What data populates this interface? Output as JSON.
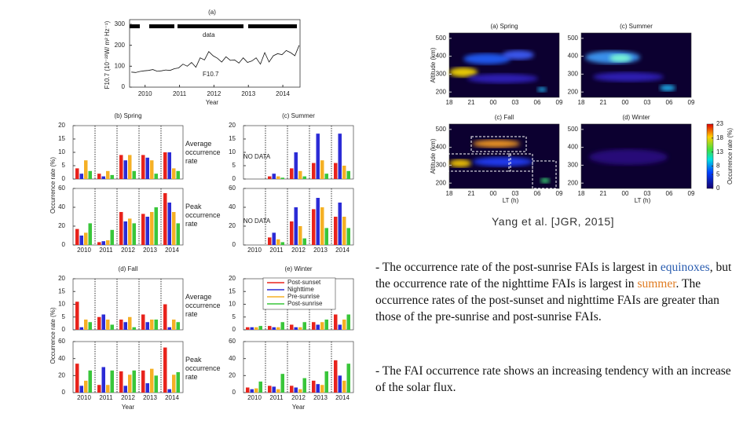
{
  "figure": {
    "panel_a": {
      "title": "(a)",
      "ylabel": "F10.7 (10⁻²²W/ m² Hz⁻¹)",
      "xlabel": "Year",
      "data_label": "data",
      "line_label": "F10.7",
      "xlim": [
        2009.55,
        2014.5
      ],
      "ylim": [
        0,
        300
      ],
      "yticks": [
        0,
        100,
        200,
        300
      ],
      "xticks": [
        2010,
        2011,
        2012,
        2013,
        2014
      ],
      "x": [
        2009.6,
        2009.725,
        2009.85,
        2009.975,
        2010.1,
        2010.225,
        2010.35,
        2010.475,
        2010.6,
        2010.725,
        2010.85,
        2010.975,
        2011.1,
        2011.225,
        2011.35,
        2011.475,
        2011.6,
        2011.725,
        2011.85,
        2011.975,
        2012.1,
        2012.225,
        2012.35,
        2012.475,
        2012.6,
        2012.725,
        2012.85,
        2012.975,
        2013.1,
        2013.225,
        2013.35,
        2013.475,
        2013.6,
        2013.725,
        2013.85,
        2013.975,
        2014.1,
        2014.225,
        2014.35,
        2014.475
      ],
      "values": [
        72,
        70,
        75,
        78,
        80,
        84,
        76,
        78,
        82,
        80,
        88,
        92,
        110,
        100,
        118,
        95,
        140,
        130,
        170,
        150,
        138,
        120,
        145,
        128,
        130,
        115,
        140,
        118,
        125,
        140,
        110,
        165,
        120,
        150,
        160,
        155,
        175,
        165,
        150,
        200
      ]
    },
    "ylabel": "Occurrence rate (%)",
    "xlabel": "Year",
    "categories": [
      "2010",
      "2011",
      "2012",
      "2013",
      "2014"
    ],
    "avg_label": "Average occurrence rate",
    "peak_label": "Peak occurrence rate",
    "avg_ylim": [
      0,
      20
    ],
    "avg_yticks": [
      0,
      5,
      10,
      15,
      20
    ],
    "peak_ylim": [
      0,
      60
    ],
    "peak_yticks": [
      0,
      20,
      40,
      60
    ],
    "series": [
      {
        "name": "Post-sunset",
        "color": "#e8231c"
      },
      {
        "name": "Nighttime",
        "color": "#2b2bd6"
      },
      {
        "name": "Pre-sunrise",
        "color": "#f5b025"
      },
      {
        "name": "Post-sunrise",
        "color": "#39c63a"
      }
    ],
    "panels": [
      {
        "title": "(b) Spring",
        "avg": [
          [
            4,
            2,
            7,
            3
          ],
          [
            2,
            1,
            3,
            1.5
          ],
          [
            9,
            7,
            9,
            3
          ],
          [
            9,
            8,
            7,
            2
          ],
          [
            10,
            10,
            4,
            3
          ]
        ],
        "peak": [
          [
            17,
            10,
            13,
            23
          ],
          [
            3,
            4,
            5,
            16
          ],
          [
            35,
            25,
            28,
            23
          ],
          [
            33,
            30,
            35,
            40
          ],
          [
            55,
            45,
            35,
            23
          ]
        ]
      },
      {
        "title": "(c) Summer",
        "no_data": "NO DATA",
        "avg": [
          [
            null,
            null,
            null,
            null
          ],
          [
            1,
            2,
            1,
            0.5
          ],
          [
            4,
            10,
            3,
            1
          ],
          [
            6,
            17,
            7,
            2
          ],
          [
            6,
            17,
            5,
            3
          ]
        ],
        "peak": [
          [
            null,
            null,
            null,
            null
          ],
          [
            8,
            13,
            6,
            3
          ],
          [
            25,
            40,
            20,
            7
          ],
          [
            38,
            50,
            40,
            18
          ],
          [
            30,
            45,
            30,
            18
          ]
        ]
      },
      {
        "title": "(d) Fall",
        "avg": [
          [
            11,
            1,
            4,
            3
          ],
          [
            5,
            6,
            4,
            2
          ],
          [
            4,
            3,
            5,
            1
          ],
          [
            6,
            3,
            4,
            4
          ],
          [
            10,
            1,
            4,
            3
          ]
        ],
        "peak": [
          [
            34,
            8,
            14,
            26
          ],
          [
            9,
            30,
            9,
            26
          ],
          [
            25,
            8,
            21,
            26
          ],
          [
            26,
            11,
            28,
            20
          ],
          [
            53,
            4,
            21,
            24
          ]
        ]
      },
      {
        "title": "(e) Winter",
        "avg": [
          [
            1,
            1,
            1,
            1.5
          ],
          [
            1.5,
            1,
            1,
            3
          ],
          [
            2,
            1,
            1,
            3
          ],
          [
            3,
            2,
            3,
            4
          ],
          [
            6,
            2,
            4,
            6
          ]
        ],
        "peak": [
          [
            6,
            4,
            5,
            13
          ],
          [
            8,
            7,
            4,
            22
          ],
          [
            8,
            6,
            4,
            17
          ],
          [
            14,
            10,
            9,
            25
          ],
          [
            38,
            20,
            14,
            34
          ]
        ]
      }
    ],
    "rti": {
      "ylabel": "Altitude (km)",
      "xlabel": "LT (h)",
      "ylim": [
        170,
        530
      ],
      "yticks": [
        200,
        300,
        400,
        500
      ],
      "xticks": [
        "18",
        "21",
        "00",
        "03",
        "06",
        "09"
      ],
      "colorbar_label": "Occurrence rate (%)",
      "colorbar_lim": [
        0,
        23
      ],
      "colorbar_ticks": [
        0,
        5,
        8,
        13,
        18,
        23
      ],
      "panels": [
        {
          "title": "(a) Spring"
        },
        {
          "title": "(c) Summer"
        },
        {
          "title": "(c) Fall"
        },
        {
          "title": "(d) Winter"
        }
      ]
    }
  },
  "citation": "Yang et al. [JGR, 2015]",
  "bullets": [
    [
      "- The occurrence rate of the post-sunrise FAIs is largest in ",
      "equinoxes",
      ", but the occurrence rate of the nighttime FAIs is largest in ",
      "summer",
      ". The occurrence rates of the post-sunset and nighttime FAIs are greater than those of the pre-sunrise and post-sunrise FAIs."
    ],
    [
      "- The FAI occurrence rate shows an increasing tendency with an increase of the solar flux."
    ]
  ]
}
